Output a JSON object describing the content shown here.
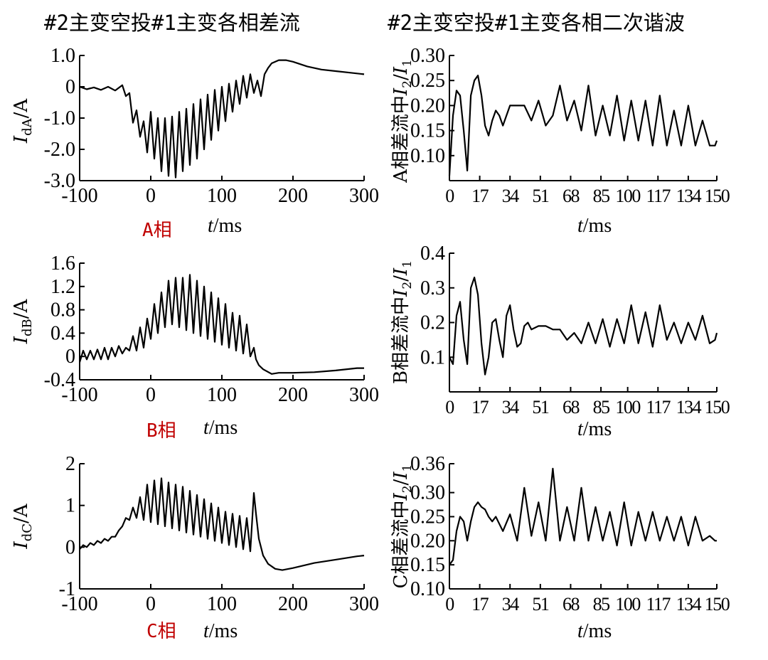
{
  "titles": {
    "left": "#2主变空投#1主变各相差流",
    "right": "#2主变空投#1主变各相二次谐波"
  },
  "chart_data": [
    {
      "id": "A-diff",
      "type": "line",
      "phase_label": "A相",
      "ylabel": "IdA/A",
      "xlabel": "t/ms",
      "xlim": [
        -100,
        300
      ],
      "ylim": [
        -3.0,
        1.0
      ],
      "xticks": [
        -100,
        0,
        100,
        200,
        300
      ],
      "xtick_labels": [
        "-100",
        "0",
        "100",
        "200",
        "300"
      ],
      "yticks": [
        1.0,
        0,
        -1.0,
        -2.0,
        -3.0
      ],
      "ytick_labels": [
        "1.0",
        "0",
        "-1.0",
        "-2.0",
        "-3.0"
      ],
      "x": [
        -100,
        -90,
        -80,
        -70,
        -60,
        -50,
        -40,
        -35,
        -30,
        -25,
        -20,
        -15,
        -10,
        -5,
        0,
        5,
        10,
        15,
        20,
        25,
        30,
        35,
        40,
        45,
        50,
        55,
        60,
        65,
        70,
        75,
        80,
        85,
        90,
        95,
        100,
        105,
        110,
        115,
        120,
        125,
        130,
        135,
        140,
        145,
        150,
        155,
        160,
        165,
        170,
        180,
        190,
        200,
        220,
        240,
        260,
        280,
        300
      ],
      "y": [
        0,
        -0.08,
        -0.02,
        -0.1,
        0,
        -0.12,
        0.05,
        -0.3,
        -0.2,
        -1.15,
        -0.75,
        -1.6,
        -1.1,
        -2.1,
        -0.8,
        -2.3,
        -1.0,
        -2.7,
        -1.0,
        -2.85,
        -0.95,
        -2.9,
        -0.8,
        -2.7,
        -0.7,
        -2.5,
        -0.55,
        -2.3,
        -0.4,
        -2.0,
        -0.25,
        -1.7,
        -0.1,
        -1.4,
        0,
        -1.1,
        0.1,
        -0.8,
        0.2,
        -0.55,
        0.35,
        -0.35,
        0.4,
        -0.2,
        0.2,
        -0.3,
        0.4,
        0.6,
        0.75,
        0.85,
        0.85,
        0.8,
        0.65,
        0.55,
        0.5,
        0.45,
        0.4
      ]
    },
    {
      "id": "A-harm",
      "type": "line",
      "ylabel": "A相差流中I2/I1",
      "xlabel": "t/ms",
      "xlim": [
        0,
        150
      ],
      "ylim": [
        0.05,
        0.3
      ],
      "xticks": [
        0,
        17,
        34,
        51,
        68,
        85,
        100,
        117,
        134,
        150
      ],
      "xtick_labels": [
        "0",
        "17",
        "34",
        "51",
        "68",
        "85",
        "100",
        "117",
        "134",
        "150"
      ],
      "yticks": [
        0.3,
        0.25,
        0.2,
        0.15,
        0.1
      ],
      "ytick_labels": [
        "0.30",
        "0.25",
        "0.20",
        "0.15",
        "0.10"
      ],
      "x": [
        0,
        2,
        4,
        6,
        8,
        10,
        12,
        14,
        16,
        18,
        20,
        22,
        24,
        26,
        28,
        30,
        34,
        38,
        42,
        46,
        50,
        54,
        58,
        62,
        66,
        70,
        74,
        78,
        82,
        86,
        90,
        94,
        98,
        102,
        106,
        110,
        114,
        118,
        122,
        126,
        130,
        134,
        138,
        142,
        146,
        149,
        150
      ],
      "y": [
        0.06,
        0.18,
        0.23,
        0.22,
        0.15,
        0.07,
        0.22,
        0.25,
        0.26,
        0.22,
        0.16,
        0.14,
        0.17,
        0.19,
        0.18,
        0.16,
        0.2,
        0.2,
        0.2,
        0.17,
        0.21,
        0.16,
        0.18,
        0.24,
        0.17,
        0.21,
        0.15,
        0.24,
        0.14,
        0.2,
        0.14,
        0.22,
        0.13,
        0.21,
        0.13,
        0.21,
        0.12,
        0.22,
        0.12,
        0.19,
        0.12,
        0.2,
        0.12,
        0.17,
        0.12,
        0.12,
        0.13
      ]
    },
    {
      "id": "B-diff",
      "type": "line",
      "phase_label": "B相",
      "ylabel": "IdB/A",
      "xlabel": "t/ms",
      "xlim": [
        -100,
        300
      ],
      "ylim": [
        -0.4,
        1.6
      ],
      "xticks": [
        -100,
        0,
        100,
        200,
        300
      ],
      "xtick_labels": [
        "-100",
        "0",
        "100",
        "200",
        "300"
      ],
      "yticks": [
        1.6,
        1.2,
        0.8,
        0.4,
        0,
        -0.4
      ],
      "ytick_labels": [
        "1.6",
        "1.2",
        "0.8",
        "0.4",
        "0",
        "-0.4"
      ],
      "x": [
        -100,
        -95,
        -90,
        -85,
        -80,
        -75,
        -70,
        -65,
        -60,
        -55,
        -50,
        -45,
        -40,
        -35,
        -30,
        -25,
        -20,
        -15,
        -10,
        -5,
        0,
        5,
        10,
        15,
        20,
        25,
        30,
        35,
        40,
        45,
        50,
        55,
        60,
        65,
        70,
        75,
        80,
        85,
        90,
        95,
        100,
        105,
        110,
        115,
        120,
        125,
        130,
        135,
        140,
        145,
        148,
        152,
        158,
        170,
        180,
        200,
        230,
        260,
        290,
        300
      ],
      "y": [
        -0.1,
        0.1,
        -0.05,
        0.1,
        -0.05,
        0.12,
        -0.05,
        0.15,
        -0.05,
        0.15,
        0,
        0.18,
        0.05,
        0.15,
        0.1,
        0.35,
        0.1,
        0.5,
        0.15,
        0.65,
        0.3,
        0.9,
        0.4,
        1.1,
        0.5,
        1.3,
        0.55,
        1.35,
        0.5,
        1.35,
        0.45,
        1.4,
        0.4,
        1.3,
        0.35,
        1.2,
        0.3,
        1.1,
        0.25,
        1.0,
        0.2,
        0.9,
        0.15,
        0.75,
        0.1,
        0.7,
        0.05,
        0.55,
        0,
        0.15,
        -0.05,
        -0.15,
        -0.22,
        -0.3,
        -0.28,
        -0.28,
        -0.27,
        -0.24,
        -0.2,
        -0.2
      ]
    },
    {
      "id": "B-harm",
      "type": "line",
      "ylabel": "B相差流中I2/I1",
      "xlabel": "t/ms",
      "xlim": [
        0,
        150
      ],
      "ylim": [
        0.0,
        0.4
      ],
      "xticks": [
        0,
        17,
        34,
        51,
        68,
        85,
        100,
        117,
        134,
        150
      ],
      "xtick_labels": [
        "0",
        "17",
        "34",
        "51",
        "68",
        "85",
        "100",
        "117",
        "134",
        "150"
      ],
      "yticks": [
        0.4,
        0.3,
        0.2,
        0.1
      ],
      "ytick_labels": [
        "0.4",
        "0.3",
        "0.2",
        "0.1"
      ],
      "x": [
        0,
        2,
        4,
        6,
        8,
        10,
        12,
        14,
        16,
        18,
        20,
        22,
        24,
        26,
        28,
        30,
        32,
        34,
        36,
        38,
        40,
        42,
        44,
        46,
        50,
        54,
        58,
        62,
        66,
        70,
        74,
        78,
        82,
        86,
        90,
        94,
        98,
        102,
        106,
        110,
        114,
        118,
        122,
        126,
        130,
        134,
        138,
        142,
        146,
        149,
        150
      ],
      "y": [
        0.1,
        0.08,
        0.22,
        0.26,
        0.15,
        0.08,
        0.3,
        0.33,
        0.28,
        0.14,
        0.05,
        0.1,
        0.2,
        0.21,
        0.15,
        0.1,
        0.22,
        0.25,
        0.18,
        0.13,
        0.14,
        0.19,
        0.2,
        0.18,
        0.19,
        0.19,
        0.18,
        0.18,
        0.15,
        0.17,
        0.14,
        0.2,
        0.14,
        0.21,
        0.13,
        0.21,
        0.14,
        0.25,
        0.14,
        0.23,
        0.13,
        0.25,
        0.15,
        0.2,
        0.14,
        0.2,
        0.15,
        0.22,
        0.14,
        0.15,
        0.17
      ]
    },
    {
      "id": "C-diff",
      "type": "line",
      "phase_label": "C相",
      "ylabel": "IdC/A",
      "xlabel": "t/ms",
      "xlim": [
        -100,
        300
      ],
      "ylim": [
        -1,
        2
      ],
      "xticks": [
        -100,
        0,
        100,
        200,
        300
      ],
      "xtick_labels": [
        "-100",
        "0",
        "100",
        "200",
        "300"
      ],
      "yticks": [
        2,
        1,
        0,
        -1
      ],
      "ytick_labels": [
        "2",
        "1",
        "0",
        "-1"
      ],
      "x": [
        -100,
        -95,
        -90,
        -85,
        -80,
        -75,
        -70,
        -65,
        -60,
        -55,
        -50,
        -45,
        -40,
        -35,
        -30,
        -25,
        -20,
        -15,
        -10,
        -5,
        0,
        5,
        10,
        15,
        20,
        25,
        30,
        35,
        40,
        45,
        50,
        55,
        60,
        65,
        70,
        75,
        80,
        85,
        90,
        95,
        100,
        105,
        110,
        115,
        120,
        125,
        130,
        135,
        140,
        145,
        148,
        152,
        158,
        165,
        175,
        185,
        200,
        230,
        260,
        290,
        300
      ],
      "y": [
        -0.05,
        0.05,
        0,
        0.1,
        0.05,
        0.15,
        0.1,
        0.2,
        0.15,
        0.25,
        0.25,
        0.4,
        0.5,
        0.7,
        0.65,
        0.95,
        0.7,
        1.2,
        0.65,
        1.5,
        0.6,
        1.6,
        0.55,
        1.65,
        0.5,
        1.55,
        0.45,
        1.5,
        0.4,
        1.45,
        0.35,
        1.35,
        0.3,
        1.25,
        0.25,
        1.15,
        0.2,
        1.05,
        0.15,
        0.95,
        0.1,
        0.85,
        0.05,
        0.8,
        0,
        0.75,
        -0.05,
        0.7,
        -0.1,
        1.3,
        0.8,
        0.2,
        -0.2,
        -0.4,
        -0.52,
        -0.55,
        -0.5,
        -0.38,
        -0.3,
        -0.22,
        -0.2
      ]
    },
    {
      "id": "C-harm",
      "type": "line",
      "ylabel": "C相差流中I2/I1",
      "xlabel": "t/ms",
      "xlim": [
        0,
        150
      ],
      "ylim": [
        0.1,
        0.36
      ],
      "xticks": [
        0,
        17,
        34,
        51,
        68,
        85,
        100,
        117,
        134,
        150
      ],
      "xtick_labels": [
        "0",
        "17",
        "34",
        "51",
        "68",
        "85",
        "100",
        "117",
        "134",
        "150"
      ],
      "yticks": [
        0.36,
        0.3,
        0.25,
        0.2,
        0.15,
        0.1
      ],
      "ytick_labels": [
        "0.36",
        "0.30",
        "0.25",
        "0.20",
        "0.15",
        "0.10"
      ],
      "x": [
        0,
        2,
        4,
        6,
        8,
        10,
        12,
        14,
        16,
        18,
        20,
        22,
        24,
        26,
        30,
        34,
        38,
        42,
        46,
        50,
        54,
        58,
        62,
        66,
        70,
        74,
        78,
        82,
        86,
        90,
        94,
        98,
        102,
        106,
        110,
        114,
        118,
        122,
        126,
        130,
        134,
        138,
        142,
        146,
        149,
        150
      ],
      "y": [
        0.15,
        0.16,
        0.22,
        0.25,
        0.24,
        0.2,
        0.24,
        0.27,
        0.28,
        0.27,
        0.265,
        0.25,
        0.24,
        0.25,
        0.22,
        0.255,
        0.2,
        0.31,
        0.21,
        0.28,
        0.2,
        0.35,
        0.2,
        0.27,
        0.2,
        0.31,
        0.2,
        0.27,
        0.2,
        0.26,
        0.19,
        0.28,
        0.19,
        0.26,
        0.2,
        0.26,
        0.2,
        0.25,
        0.2,
        0.25,
        0.19,
        0.25,
        0.2,
        0.21,
        0.2,
        0.2
      ]
    }
  ]
}
